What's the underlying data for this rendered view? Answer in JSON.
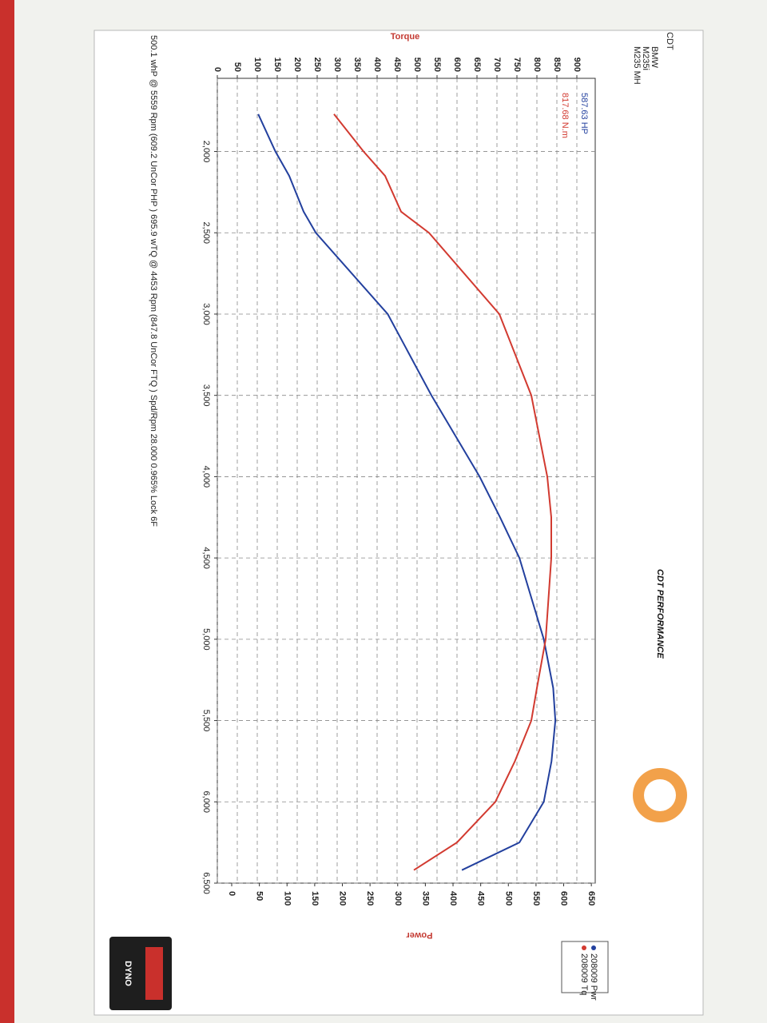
{
  "header": {
    "lines": [
      "CDT",
      "BMW",
      "M235i",
      "M235 MH"
    ]
  },
  "logo": "CDT PERFORMANCE",
  "badge": "DYNO",
  "chart_data": {
    "type": "line",
    "y_label": "Torque",
    "y2_label": "Power",
    "annotations": [
      {
        "text": "587.63 HP",
        "color": "#23409e"
      },
      {
        "text": "817.68 N.m",
        "color": "#d23a30"
      }
    ],
    "note": "500.1 whP @ 5559 Rpm (609.2 UnCor PHP ) 695.9 wTQ @ 4453 Rpm (847.8 UnCor FTQ ) Spd/Rpm 28.000 0.965% Lock 6F",
    "x": [
      1770,
      2000,
      2150,
      2370,
      2500,
      3000,
      3500,
      4000,
      4250,
      4500,
      5000,
      5300,
      5500,
      5750,
      6000,
      6250,
      6420
    ],
    "xlim": [
      1550,
      6500
    ],
    "xticks": [
      {
        "value": 2000,
        "label": "2,000"
      },
      {
        "value": 2500,
        "label": "2,500"
      },
      {
        "value": 3000,
        "label": "3,000"
      },
      {
        "value": 3500,
        "label": "3,500"
      },
      {
        "value": 4000,
        "label": "4,000"
      },
      {
        "value": 4500,
        "label": "4,500"
      },
      {
        "value": 5000,
        "label": "5,000"
      },
      {
        "value": 5500,
        "label": "5,500"
      },
      {
        "value": 6000,
        "label": "6,000"
      },
      {
        "value": 6500,
        "label": "6,500"
      }
    ],
    "ylim": [
      0,
      946
    ],
    "yticks": [
      0,
      50,
      100,
      150,
      200,
      250,
      300,
      350,
      400,
      450,
      500,
      550,
      600,
      650,
      700,
      750,
      800,
      850,
      900
    ],
    "y2lim": [
      -26,
      657
    ],
    "y2ticks": [
      0,
      50,
      100,
      150,
      200,
      250,
      300,
      350,
      400,
      450,
      500,
      550,
      600,
      650
    ],
    "grid": true,
    "series": [
      {
        "name": "208009 Pwr",
        "color": "#23409e",
        "axis": "y2",
        "values": [
          48,
          79,
          104,
          130,
          152,
          282,
          361,
          448,
          485,
          520,
          564,
          581,
          585,
          578,
          564,
          520,
          416
        ]
      },
      {
        "name": "208009 Tq",
        "color": "#d23a30",
        "values": [
          292,
          366,
          420,
          460,
          530,
          706,
          786,
          826,
          836,
          836,
          822,
          800,
          786,
          745,
          696,
          600,
          492
        ]
      }
    ]
  }
}
